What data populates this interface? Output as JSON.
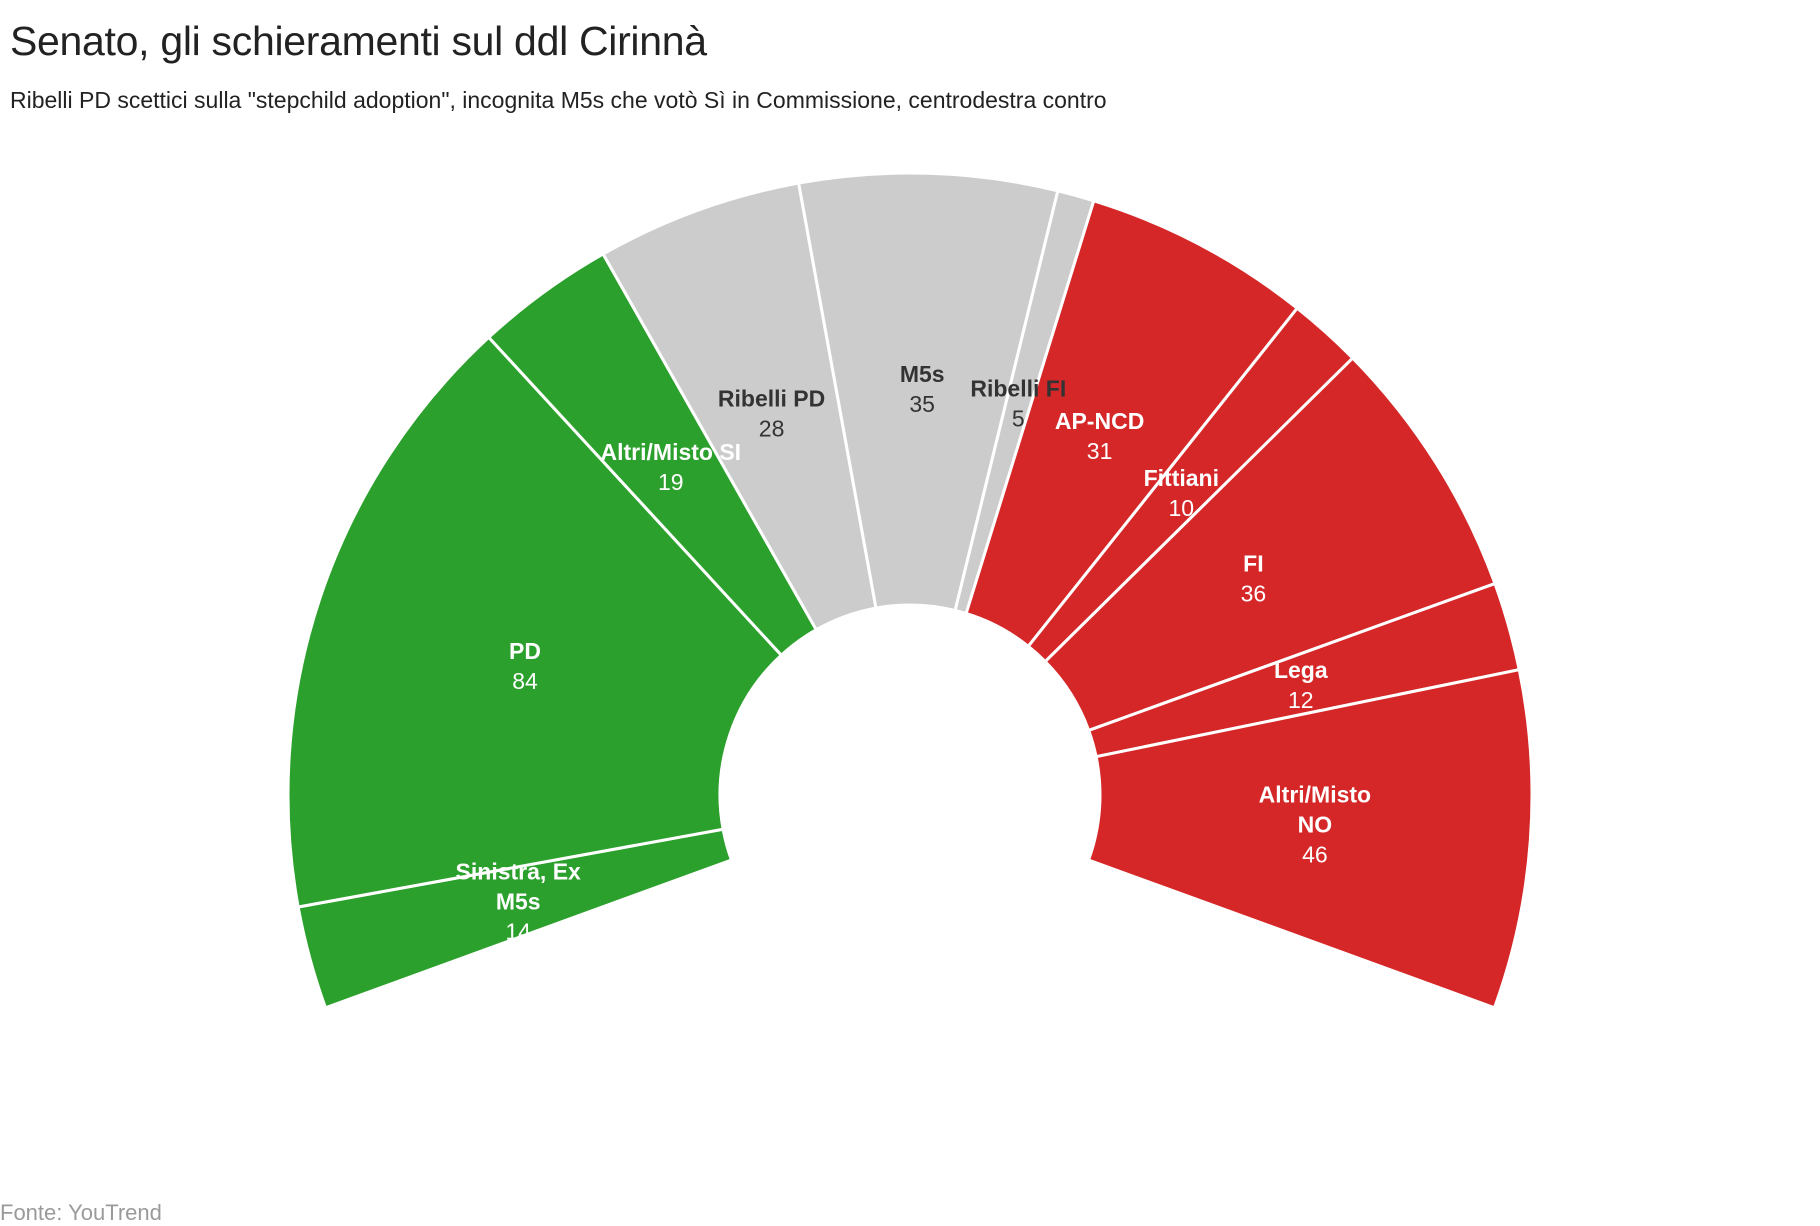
{
  "header": {
    "title": "Senato, gli schieramenti sul ddl Cirinnà",
    "subtitle": "Ribelli PD scettici sulla \"stepchild adoption\", incognita M5s che votò Sì in Commissione, centrodestra contro"
  },
  "footer": {
    "source": "Fonte: YouTrend"
  },
  "colors": {
    "green": "#2ca02c",
    "gray": "#cccccc",
    "red": "#d62728",
    "light_text": "#ffffff",
    "dark_text": "#333333"
  },
  "chart_data": {
    "type": "pie",
    "variant": "semicircle-donut",
    "categories": [
      "Sinistra, Ex M5s",
      "PD",
      "Altri/Misto SI",
      "Ribelli PD",
      "M5s",
      "Ribelli FI",
      "AP-NCD",
      "Fittiani",
      "FI",
      "Lega",
      "Altri/Misto NO"
    ],
    "label_lines": [
      [
        "Sinistra, Ex",
        "M5s"
      ],
      [
        "PD"
      ],
      [
        "Altri/Misto SI"
      ],
      [
        "Ribelli PD"
      ],
      [
        "M5s"
      ],
      [
        "Ribelli FI"
      ],
      [
        "AP-NCD"
      ],
      [
        "Fittiani"
      ],
      [
        "FI"
      ],
      [
        "Lega"
      ],
      [
        "Altri/Misto",
        "NO"
      ]
    ],
    "values": [
      14,
      84,
      19,
      28,
      35,
      5,
      31,
      10,
      36,
      12,
      46
    ],
    "color_keys": [
      "green",
      "green",
      "green",
      "gray",
      "gray",
      "gray",
      "red",
      "red",
      "red",
      "red",
      "red"
    ],
    "legend": "none",
    "grid": false
  }
}
